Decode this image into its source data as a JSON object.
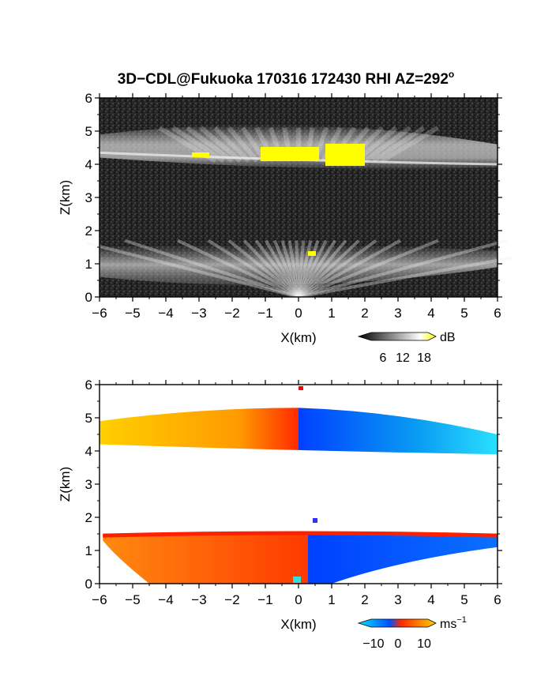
{
  "figure": {
    "title": "3D−CDL@Fukuoka 170316 172430 RHI AZ=292",
    "title_superscript": "o"
  },
  "chart_data": [
    {
      "type": "heatmap",
      "name": "reflectivity",
      "xlabel": "X(km)",
      "ylabel": "Z(km)",
      "xlim": [
        -6,
        6
      ],
      "ylim": [
        0,
        6
      ],
      "x_ticks": [
        "−6",
        "−5",
        "−4",
        "−3",
        "−2",
        "−1",
        "0",
        "1",
        "2",
        "3",
        "4",
        "5",
        "6"
      ],
      "y_ticks": [
        "0",
        "1",
        "2",
        "3",
        "4",
        "5",
        "6"
      ],
      "colorbar": {
        "unit": "dB",
        "ticks": [
          "6",
          "12",
          "18"
        ],
        "colors": [
          "#000000",
          "#ffffff",
          "#ffff00"
        ]
      },
      "layers": [
        {
          "z_bottom": 3.9,
          "z_top": 5.4,
          "peak_z": 4.6
        },
        {
          "z_bottom": 0.0,
          "z_top": 1.6,
          "peak_z": 0.6
        }
      ],
      "grid": false
    },
    {
      "type": "heatmap",
      "name": "doppler_velocity",
      "xlabel": "X(km)",
      "ylabel": "Z(km)",
      "xlim": [
        -6,
        6
      ],
      "ylim": [
        0,
        6
      ],
      "x_ticks": [
        "−6",
        "−5",
        "−4",
        "−3",
        "−2",
        "−1",
        "0",
        "1",
        "2",
        "3",
        "4",
        "5",
        "6"
      ],
      "y_ticks": [
        "0",
        "1",
        "2",
        "3",
        "4",
        "5",
        "6"
      ],
      "colorbar": {
        "unit": "ms",
        "unit_superscript": "−1",
        "ticks": [
          "−10",
          "0",
          "10"
        ],
        "colors": [
          "#00e5ff",
          "#0050ff",
          "#ff2a00",
          "#ffd000"
        ]
      },
      "layers": [
        {
          "z_bottom": 4.0,
          "z_top": 5.3,
          "x_start": -6.0,
          "x_end": 6.0,
          "sign_change_x": 0.0
        },
        {
          "z_bottom": 0.0,
          "z_top": 1.6,
          "x_start": -5.9,
          "x_end": 6.0,
          "sign_change_x": 0.1
        }
      ],
      "grid": false
    }
  ]
}
